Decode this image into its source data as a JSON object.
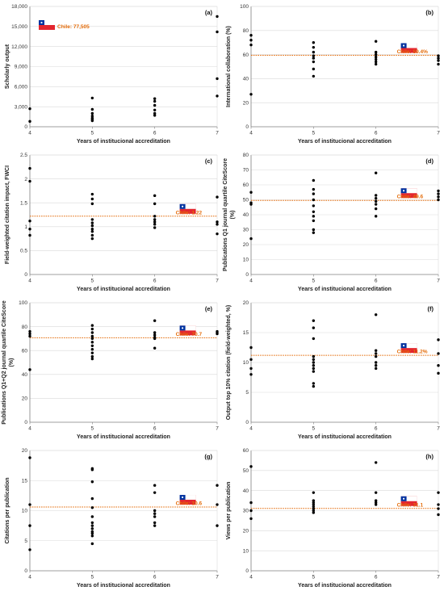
{
  "figure": {
    "colors": {
      "points": "#000000",
      "reference_line": "#e46c0a",
      "chile_label": "#e46c0a",
      "grid": "#d9d9d9",
      "axis": "#7f7f7f",
      "flag_blue": "#0033a0",
      "flag_red": "#e3262e",
      "flag_white": "#ffffff"
    },
    "icons": [
      "chile-flag-icon"
    ]
  },
  "chart_data": [
    {
      "type": "scatter",
      "panel": "(a)",
      "xlabel": "Years of institucional accreditation",
      "ylabel": "Scholarly output",
      "xlim": [
        4,
        7
      ],
      "xticks": [
        "4",
        "5",
        "6",
        "7"
      ],
      "ylim": [
        0,
        18000
      ],
      "yticks": [
        "0",
        "3,000",
        "6,000",
        "9,000",
        "12,000",
        "15,000",
        "18,000"
      ],
      "grid": "horizontal",
      "reference": null,
      "annotation": "Chile: 77,505",
      "points": [
        [
          4,
          2700
        ],
        [
          4,
          800
        ],
        [
          5,
          4300
        ],
        [
          5,
          2600
        ],
        [
          5,
          2000
        ],
        [
          5,
          1600
        ],
        [
          5,
          1300
        ],
        [
          5,
          1100
        ],
        [
          5,
          900
        ],
        [
          6,
          4200
        ],
        [
          6,
          3800
        ],
        [
          6,
          3200
        ],
        [
          6,
          2500
        ],
        [
          6,
          2000
        ],
        [
          6,
          1700
        ],
        [
          7,
          16500
        ],
        [
          7,
          14200
        ],
        [
          7,
          7200
        ],
        [
          7,
          4600
        ]
      ]
    },
    {
      "type": "scatter",
      "panel": "(b)",
      "xlabel": "Years of institucional accreditation",
      "ylabel": "International collaboration (%)",
      "xlim": [
        4,
        7
      ],
      "xticks": [
        "4",
        "5",
        "6",
        "7"
      ],
      "ylim": [
        0,
        100
      ],
      "yticks": [
        "0",
        "20",
        "40",
        "60",
        "80",
        "100"
      ],
      "grid": "horizontal",
      "reference": 59.4,
      "annotation": "Chile: 59.4%",
      "points": [
        [
          4,
          76
        ],
        [
          4,
          72
        ],
        [
          4,
          68
        ],
        [
          4,
          27
        ],
        [
          5,
          70
        ],
        [
          5,
          66
        ],
        [
          5,
          62
        ],
        [
          5,
          59
        ],
        [
          5,
          57
        ],
        [
          5,
          54
        ],
        [
          5,
          48
        ],
        [
          5,
          42
        ],
        [
          6,
          71
        ],
        [
          6,
          62
        ],
        [
          6,
          60
        ],
        [
          6,
          58
        ],
        [
          6,
          56
        ],
        [
          6,
          54
        ],
        [
          6,
          52
        ],
        [
          7,
          59
        ],
        [
          7,
          57
        ],
        [
          7,
          55
        ],
        [
          7,
          52
        ]
      ]
    },
    {
      "type": "scatter",
      "panel": "(c)",
      "xlabel": "Years of institucional accreditation",
      "ylabel": "Field-weighted citation impact, FWCI",
      "xlim": [
        4,
        7
      ],
      "xticks": [
        "4",
        "5",
        "6",
        "7"
      ],
      "ylim": [
        0,
        2.5
      ],
      "yticks": [
        "0",
        "0.5",
        "1",
        "1.5",
        "2",
        "2.5"
      ],
      "grid": "horizontal",
      "reference": 1.22,
      "annotation": "Chile: 1.22",
      "points": [
        [
          4,
          2.22
        ],
        [
          4,
          1.95
        ],
        [
          4,
          1.12
        ],
        [
          4,
          0.95
        ],
        [
          4,
          0.82
        ],
        [
          5,
          1.68
        ],
        [
          5,
          1.58
        ],
        [
          5,
          1.48
        ],
        [
          5,
          1.15
        ],
        [
          5,
          1.08
        ],
        [
          5,
          1.02
        ],
        [
          5,
          0.95
        ],
        [
          5,
          0.9
        ],
        [
          5,
          0.82
        ],
        [
          5,
          0.75
        ],
        [
          6,
          1.65
        ],
        [
          6,
          1.48
        ],
        [
          6,
          1.22
        ],
        [
          6,
          1.15
        ],
        [
          6,
          1.1
        ],
        [
          6,
          1.05
        ],
        [
          6,
          0.98
        ],
        [
          7,
          1.62
        ],
        [
          7,
          1.1
        ],
        [
          7,
          1.05
        ],
        [
          7,
          0.85
        ]
      ]
    },
    {
      "type": "scatter",
      "panel": "(d)",
      "xlabel": "Years of institucional accreditation",
      "ylabel": "Publications Q1 journal quartile CiteScore (%)",
      "xlim": [
        4,
        7
      ],
      "xticks": [
        "4",
        "5",
        "6",
        "7"
      ],
      "ylim": [
        0,
        80
      ],
      "yticks": [
        "0",
        "10",
        "20",
        "30",
        "40",
        "50",
        "60",
        "70",
        "80"
      ],
      "grid": "horizontal",
      "reference": 49.6,
      "annotation": "Chile: 49.6",
      "points": [
        [
          4,
          55
        ],
        [
          4,
          48
        ],
        [
          4,
          47
        ],
        [
          4,
          24
        ],
        [
          5,
          63
        ],
        [
          5,
          57
        ],
        [
          5,
          54
        ],
        [
          5,
          50
        ],
        [
          5,
          46
        ],
        [
          5,
          42
        ],
        [
          5,
          39
        ],
        [
          5,
          36
        ],
        [
          5,
          30
        ],
        [
          5,
          28
        ],
        [
          6,
          68
        ],
        [
          6,
          53
        ],
        [
          6,
          51
        ],
        [
          6,
          49
        ],
        [
          6,
          47
        ],
        [
          6,
          44
        ],
        [
          6,
          39
        ],
        [
          7,
          56
        ],
        [
          7,
          54
        ],
        [
          7,
          52
        ],
        [
          7,
          50
        ]
      ]
    },
    {
      "type": "scatter",
      "panel": "(e)",
      "xlabel": "Years of institucional accreditation",
      "ylabel": "Publications Q1+Q2 journal quartile CiteScore (%)",
      "xlim": [
        4,
        7
      ],
      "xticks": [
        "4",
        "5",
        "6",
        "7"
      ],
      "ylim": [
        0,
        100
      ],
      "yticks": [
        "0",
        "20",
        "40",
        "60",
        "80",
        "100"
      ],
      "grid": "horizontal",
      "reference": 70.7,
      "annotation": "Chile: 70.7",
      "points": [
        [
          4,
          76
        ],
        [
          4,
          74
        ],
        [
          4,
          72
        ],
        [
          4,
          44
        ],
        [
          5,
          81
        ],
        [
          5,
          78
        ],
        [
          5,
          75
        ],
        [
          5,
          72
        ],
        [
          5,
          70
        ],
        [
          5,
          67
        ],
        [
          5,
          64
        ],
        [
          5,
          61
        ],
        [
          5,
          58
        ],
        [
          5,
          55
        ],
        [
          5,
          53
        ],
        [
          6,
          85
        ],
        [
          6,
          75
        ],
        [
          6,
          73
        ],
        [
          6,
          71
        ],
        [
          6,
          70
        ],
        [
          6,
          62
        ],
        [
          7,
          76
        ],
        [
          7,
          75
        ],
        [
          7,
          74
        ]
      ]
    },
    {
      "type": "scatter",
      "panel": "(f)",
      "xlabel": "Years of institucional accreditation",
      "ylabel": "Output top 10% citation (field-weighted, %)",
      "xlim": [
        4,
        7
      ],
      "xticks": [
        "4",
        "5",
        "6",
        "7"
      ],
      "ylim": [
        0,
        20
      ],
      "yticks": [
        "0",
        "5",
        "10",
        "15",
        "20"
      ],
      "grid": "horizontal",
      "reference": 11.2,
      "annotation": "Chile: 11.2%",
      "points": [
        [
          4,
          12.5
        ],
        [
          4,
          10.5
        ],
        [
          4,
          9.0
        ],
        [
          4,
          8.0
        ],
        [
          5,
          17.0
        ],
        [
          5,
          15.8
        ],
        [
          5,
          14.0
        ],
        [
          5,
          11.0
        ],
        [
          5,
          10.5
        ],
        [
          5,
          10.0
        ],
        [
          5,
          9.5
        ],
        [
          5,
          9.0
        ],
        [
          5,
          8.5
        ],
        [
          5,
          6.5
        ],
        [
          5,
          6.0
        ],
        [
          6,
          18.0
        ],
        [
          6,
          12.0
        ],
        [
          6,
          11.5
        ],
        [
          6,
          11.0
        ],
        [
          6,
          10.0
        ],
        [
          6,
          9.5
        ],
        [
          6,
          9.0
        ],
        [
          7,
          13.8
        ],
        [
          7,
          11.5
        ],
        [
          7,
          9.5
        ],
        [
          7,
          8.2
        ]
      ]
    },
    {
      "type": "scatter",
      "panel": "(g)",
      "xlabel": "Years of institucional accreditation",
      "ylabel": "Citations per publication",
      "xlim": [
        4,
        7
      ],
      "xticks": [
        "4",
        "5",
        "6",
        "7"
      ],
      "ylim": [
        0,
        20
      ],
      "yticks": [
        "0",
        "5",
        "10",
        "15",
        "20"
      ],
      "grid": "horizontal",
      "reference": 10.6,
      "annotation": "Chile: 10.6",
      "points": [
        [
          4,
          18.8
        ],
        [
          4,
          11.0
        ],
        [
          4,
          7.5
        ],
        [
          4,
          3.5
        ],
        [
          5,
          17.0
        ],
        [
          5,
          16.8
        ],
        [
          5,
          14.8
        ],
        [
          5,
          12.0
        ],
        [
          5,
          10.5
        ],
        [
          5,
          9.0
        ],
        [
          5,
          8.0
        ],
        [
          5,
          7.5
        ],
        [
          5,
          7.0
        ],
        [
          5,
          6.5
        ],
        [
          5,
          6.2
        ],
        [
          5,
          5.8
        ],
        [
          5,
          4.5
        ],
        [
          6,
          14.2
        ],
        [
          6,
          13.0
        ],
        [
          6,
          10.0
        ],
        [
          6,
          9.5
        ],
        [
          6,
          9.0
        ],
        [
          6,
          8.0
        ],
        [
          6,
          7.5
        ],
        [
          7,
          14.2
        ],
        [
          7,
          11.0
        ],
        [
          7,
          7.5
        ]
      ]
    },
    {
      "type": "scatter",
      "panel": "(h)",
      "xlabel": "Years of institucional accreditation",
      "ylabel": "Views per publication",
      "xlim": [
        4,
        7
      ],
      "xticks": [
        "4",
        "5",
        "6",
        "7"
      ],
      "ylim": [
        0,
        60
      ],
      "yticks": [
        "0",
        "10",
        "20",
        "30",
        "40",
        "50",
        "60"
      ],
      "grid": "horizontal",
      "reference": 31.1,
      "annotation": "Chile: 31.1",
      "points": [
        [
          4,
          52
        ],
        [
          4,
          34
        ],
        [
          4,
          30
        ],
        [
          4,
          26
        ],
        [
          5,
          39
        ],
        [
          5,
          35
        ],
        [
          5,
          34
        ],
        [
          5,
          33
        ],
        [
          5,
          32
        ],
        [
          5,
          31
        ],
        [
          5,
          30
        ],
        [
          5,
          29
        ],
        [
          6,
          54
        ],
        [
          6,
          39
        ],
        [
          6,
          35
        ],
        [
          6,
          34
        ],
        [
          6,
          33
        ],
        [
          7,
          39
        ],
        [
          7,
          33
        ],
        [
          7,
          31
        ],
        [
          7,
          28
        ]
      ]
    }
  ]
}
